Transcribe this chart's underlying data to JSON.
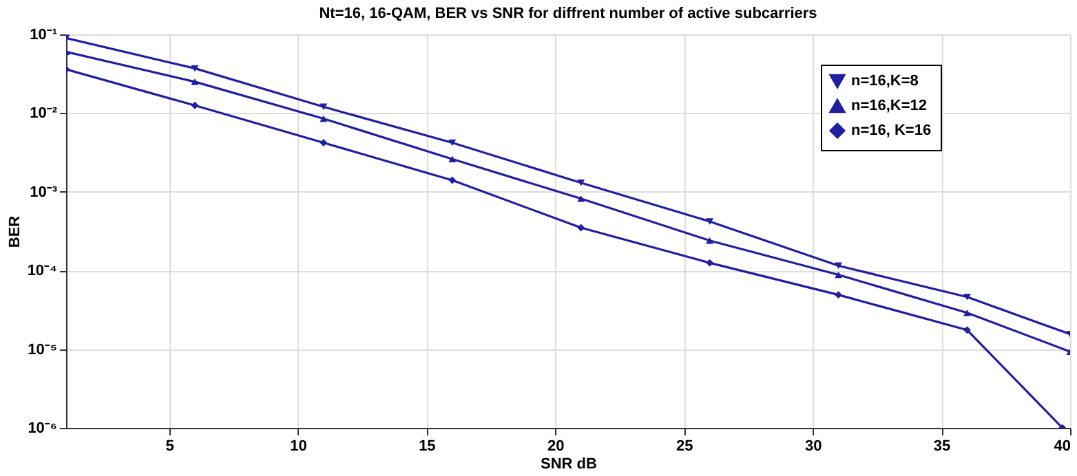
{
  "chart_data": {
    "type": "line",
    "title": "Nt=16, 16-QAM, BER vs SNR for diffrent number of active subcarriers",
    "xlabel": "SNR dB",
    "ylabel": "BER",
    "x": [
      1,
      6,
      11,
      16,
      21,
      26,
      31,
      36,
      40
    ],
    "series": [
      {
        "name": "n=16,K=8",
        "color": "#1f1fa0",
        "marker": "triangle-down",
        "values": [
          0.09,
          0.037,
          0.012,
          0.0042,
          0.0013,
          0.00042,
          0.000115,
          4.6e-05,
          1.55e-05
        ]
      },
      {
        "name": "n=16,K=12",
        "color": "#1f1fa0",
        "marker": "triangle",
        "values": [
          0.06,
          0.025,
          0.0085,
          0.0026,
          0.00082,
          0.00024,
          8.8e-05,
          2.9e-05,
          9.3e-06
        ]
      },
      {
        "name": "n=16, K=16",
        "color": "#1f1fa0",
        "marker": "diamond",
        "x": [
          1,
          6,
          11,
          16,
          21,
          26,
          31,
          36,
          39.7
        ],
        "values": [
          0.036,
          0.0125,
          0.0042,
          0.0014,
          0.00035,
          0.000125,
          4.9e-05,
          1.75e-05,
          1e-06
        ]
      }
    ],
    "xlim": [
      1,
      40
    ],
    "xticks": [
      5,
      10,
      15,
      20,
      25,
      30,
      35,
      40
    ],
    "ylim": [
      1e-06,
      0.1
    ],
    "log": "y",
    "yticks": [
      {
        "value": 1e-06,
        "label": "10⁻⁶"
      },
      {
        "value": 1e-05,
        "label": "10⁻⁵"
      },
      {
        "value": 0.0001,
        "label": "10⁻⁴"
      },
      {
        "value": 0.001,
        "label": "10⁻³"
      },
      {
        "value": 0.01,
        "label": "10⁻²"
      },
      {
        "value": 0.1,
        "label": "10⁻¹"
      }
    ],
    "grid": true,
    "legend": "top right",
    "line_style": "solid"
  }
}
